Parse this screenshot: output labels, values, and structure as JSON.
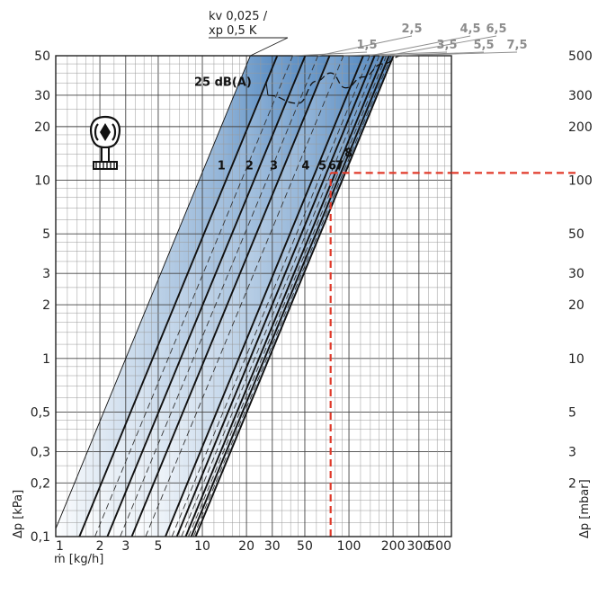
{
  "chart_data": {
    "type": "line",
    "scale": "log-log",
    "x": {
      "label": "ṁ [kg/h]",
      "range": [
        1,
        500
      ],
      "ticks": [
        1,
        2,
        3,
        5,
        10,
        20,
        30,
        50,
        100,
        200,
        300,
        500
      ],
      "tick_labels": [
        "1",
        "2",
        "3",
        "5",
        "10",
        "20",
        "30",
        "50",
        "100",
        "200",
        "300",
        "500"
      ]
    },
    "y_left": {
      "label": "Δp [kPa]",
      "range": [
        0.1,
        50
      ],
      "ticks": [
        0.1,
        0.2,
        0.3,
        0.5,
        1,
        2,
        3,
        5,
        10,
        20,
        30,
        50
      ],
      "tick_labels": [
        "0,1",
        "0,2",
        "0,3",
        "0,5",
        "1",
        "2",
        "3",
        "5",
        "10",
        "20",
        "30",
        "50"
      ]
    },
    "y_right": {
      "label": "Δp [mbar]",
      "ticks": [
        2,
        3,
        5,
        10,
        20,
        30,
        50,
        100,
        200,
        300,
        500
      ],
      "tick_labels": [
        "2",
        "3",
        "5",
        "10",
        "20",
        "30",
        "50",
        "100",
        "200",
        "300",
        "500"
      ]
    },
    "reference_line": {
      "label_line1": "kv 0,025 /",
      "label_line2": "xp 0,5 K",
      "x_at_ymin": 0.95
    },
    "series": [
      {
        "name": "1",
        "x_at_ymin": 1.45
      },
      {
        "name": "2",
        "x_at_ymin": 2.25
      },
      {
        "name": "3",
        "x_at_ymin": 3.3
      },
      {
        "name": "4",
        "x_at_ymin": 5.6
      },
      {
        "name": "5",
        "x_at_ymin": 6.7
      },
      {
        "name": "6",
        "x_at_ymin": 7.7
      },
      {
        "name": "7",
        "x_at_ymin": 8.4
      },
      {
        "name": "8",
        "x_at_ymin": 9.0
      }
    ],
    "intermediate_settings": [
      {
        "name": "1,5",
        "x_at_ymin": 1.85
      },
      {
        "name": "2,5",
        "x_at_ymin": 2.75
      },
      {
        "name": "3,5",
        "x_at_ymin": 4.1
      },
      {
        "name": "4,5",
        "x_at_ymin": 6.2
      },
      {
        "name": "5,5",
        "x_at_ymin": 7.2
      },
      {
        "name": "6,5",
        "x_at_ymin": 8.05
      },
      {
        "name": "7,5",
        "x_at_ymin": 8.7
      }
    ],
    "noise_curve": {
      "label": "25 dB(A)",
      "points": [
        [
          28,
          30
        ],
        [
          45,
          27
        ],
        [
          60,
          36
        ],
        [
          75,
          40
        ],
        [
          95,
          33
        ],
        [
          125,
          38
        ],
        [
          170,
          45
        ],
        [
          230,
          50
        ]
      ]
    },
    "example": {
      "x": 75,
      "y": 11,
      "color": "#e03a2a"
    },
    "band_color": "#3b78b8"
  }
}
